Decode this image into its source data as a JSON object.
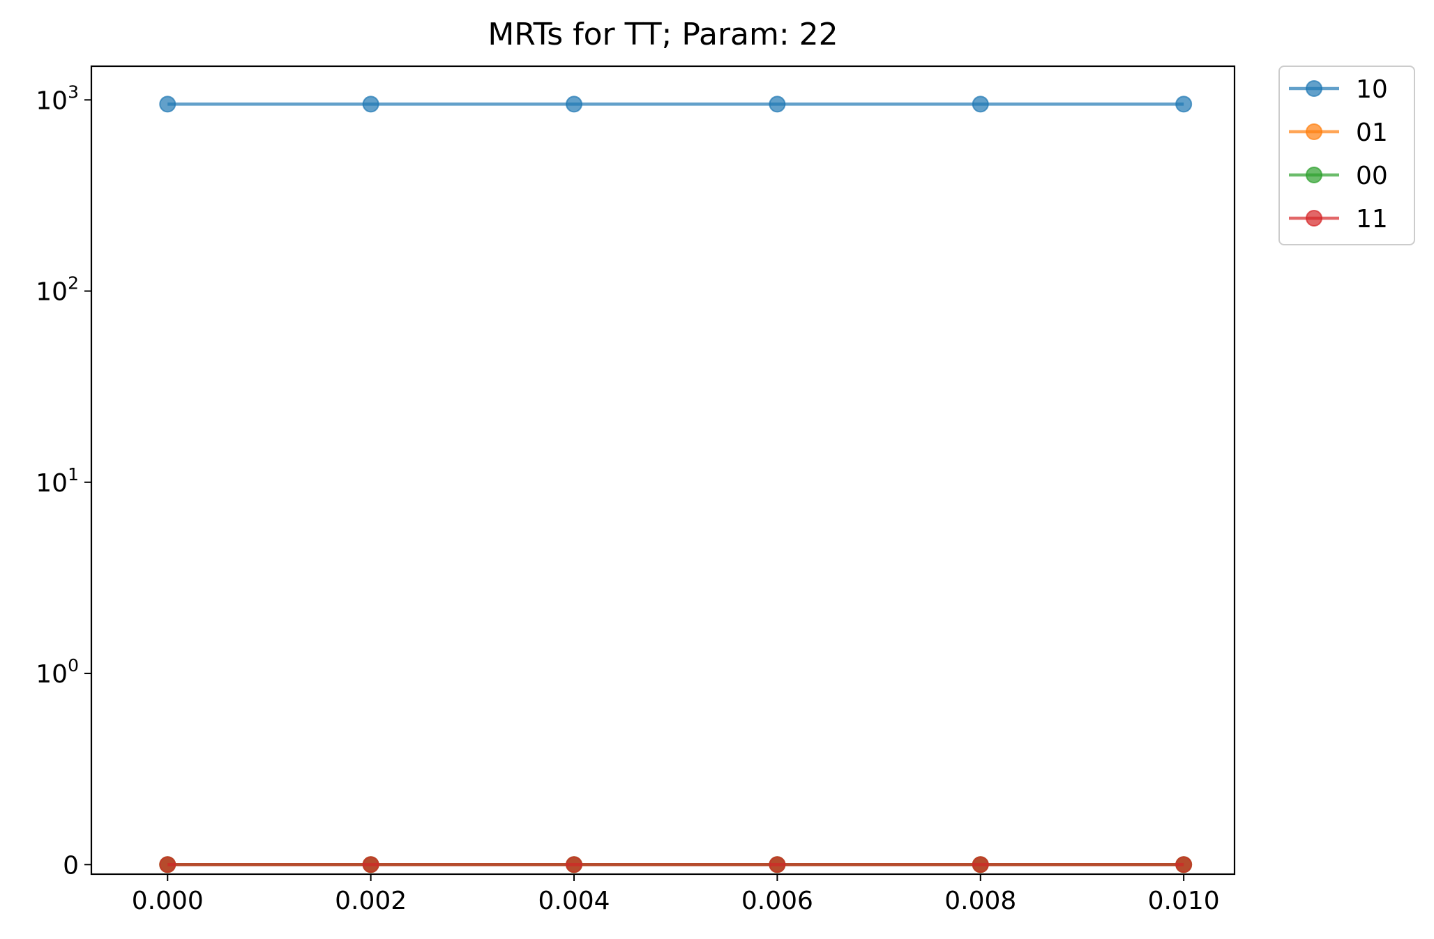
{
  "chart_data": {
    "type": "line",
    "title": "MRTs for TT; Param: 22",
    "xlabel": "",
    "ylabel": "",
    "yscale": "symlog",
    "x": [
      0.0,
      0.002,
      0.004,
      0.006,
      0.008,
      0.01
    ],
    "x_tick_labels": [
      "0.000",
      "0.002",
      "0.004",
      "0.006",
      "0.008",
      "0.010"
    ],
    "y_ticks": [
      {
        "value": 0,
        "base": "0",
        "exp": ""
      },
      {
        "value": 1,
        "base": "10",
        "exp": "0"
      },
      {
        "value": 10,
        "base": "10",
        "exp": "1"
      },
      {
        "value": 100,
        "base": "10",
        "exp": "2"
      },
      {
        "value": 1000,
        "base": "10",
        "exp": "3"
      }
    ],
    "xlim": [
      -0.00075,
      0.0105
    ],
    "ylim": [
      -0.05,
      1500
    ],
    "grid": false,
    "legend_position": "outside-top-right",
    "series": [
      {
        "name": "10",
        "color": "#1f77b4",
        "values": [
          950,
          950,
          950,
          950,
          950,
          950
        ]
      },
      {
        "name": "01",
        "color": "#ff7f0e",
        "values": [
          0,
          0,
          0,
          0,
          0,
          0
        ]
      },
      {
        "name": "00",
        "color": "#2ca02c",
        "values": [
          0,
          0,
          0,
          0,
          0,
          0
        ]
      },
      {
        "name": "11",
        "color": "#d62728",
        "values": [
          0,
          0,
          0,
          0,
          0,
          0
        ]
      }
    ]
  }
}
